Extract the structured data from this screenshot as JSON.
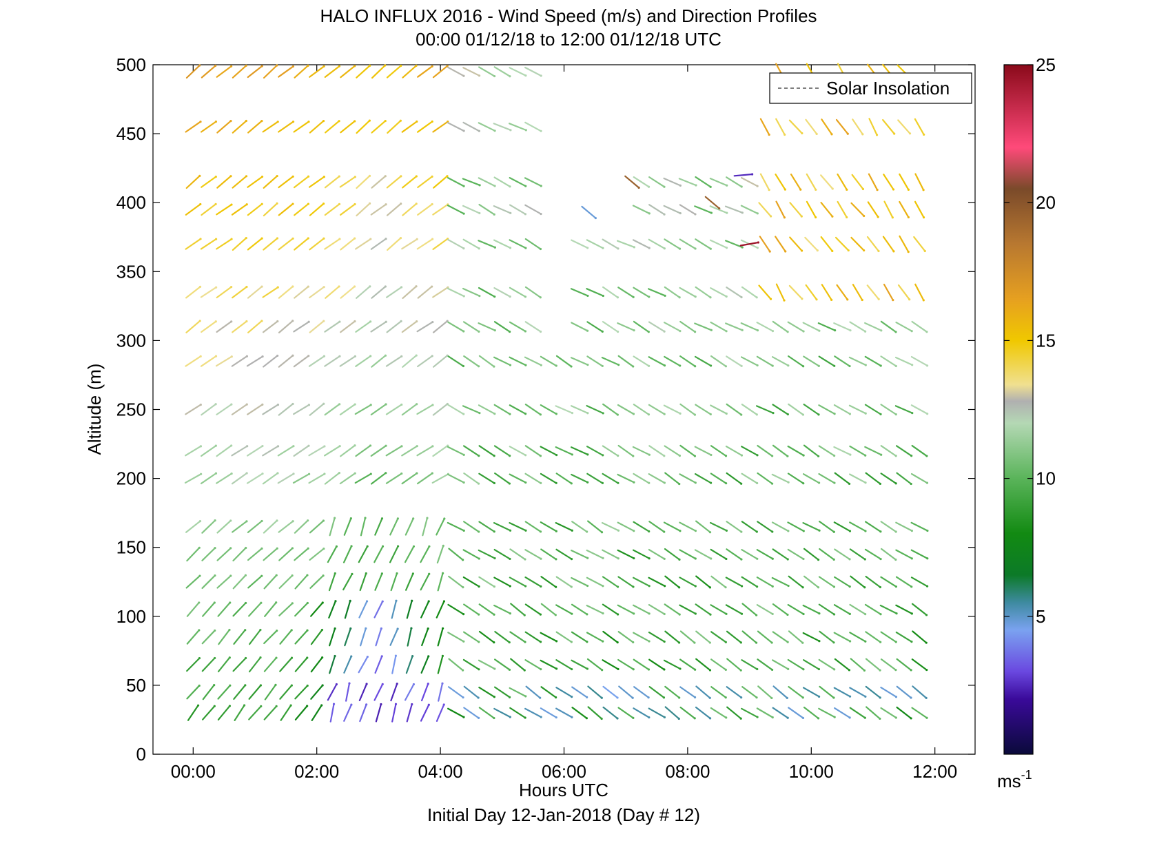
{
  "chart_data": {
    "type": "wind-barb-profile",
    "title": "HALO INFLUX 2016 - Wind Speed (m/s) and Direction Profiles",
    "subtitle": "00:00 01/12/18 to 12:00 01/12/18  UTC",
    "xlabel": "Hours UTC",
    "ylabel": "Altitude (m)",
    "footer": "Initial Day 12-Jan-2018 (Day # 12)",
    "x_ticks": [
      "00:00",
      "02:00",
      "04:00",
      "06:00",
      "08:00",
      "10:00",
      "12:00"
    ],
    "x_tick_values": [
      0,
      2,
      4,
      6,
      8,
      10,
      12
    ],
    "xlim": [
      -0.65,
      12.65
    ],
    "y_ticks": [
      0,
      50,
      100,
      150,
      200,
      250,
      300,
      350,
      400,
      450,
      500
    ],
    "ylim": [
      0,
      500
    ],
    "legend": {
      "entries": [
        "Solar Insolation"
      ],
      "placement": "top-right",
      "line_style": "dashed"
    },
    "colorbar": {
      "ticks": [
        5,
        10,
        15,
        20,
        25
      ],
      "range": [
        0,
        25
      ],
      "unit_label": "ms",
      "unit_exponent": "-1",
      "stops": [
        {
          "v": 0,
          "c": "#0a0a3a"
        },
        {
          "v": 2,
          "c": "#3a0a9a"
        },
        {
          "v": 3,
          "c": "#6a48e0"
        },
        {
          "v": 4.5,
          "c": "#7aa2f0"
        },
        {
          "v": 5.5,
          "c": "#3e8aa0"
        },
        {
          "v": 6.5,
          "c": "#0c7a28"
        },
        {
          "v": 8,
          "c": "#128a12"
        },
        {
          "v": 10,
          "c": "#5ab45a"
        },
        {
          "v": 12,
          "c": "#b4d8b4"
        },
        {
          "v": 12.8,
          "c": "#b0b0b0"
        },
        {
          "v": 13.4,
          "c": "#f0e090"
        },
        {
          "v": 15,
          "c": "#f0c800"
        },
        {
          "v": 16.5,
          "c": "#e6a020"
        },
        {
          "v": 18.5,
          "c": "#b87830"
        },
        {
          "v": 20.5,
          "c": "#7a4a2a"
        },
        {
          "v": 22,
          "c": "#ff4a7a"
        },
        {
          "v": 25,
          "c": "#8a0a1a"
        }
      ]
    },
    "altitudes": [
      30,
      45,
      65,
      85,
      105,
      125,
      145,
      165,
      200,
      220,
      250,
      285,
      310,
      335,
      370,
      395,
      415,
      455,
      495
    ],
    "times": [
      0.0,
      0.25,
      0.5,
      0.75,
      1.0,
      1.25,
      1.5,
      1.75,
      2.0,
      2.25,
      2.5,
      2.75,
      3.0,
      3.25,
      3.5,
      3.75,
      4.0,
      4.25,
      4.5,
      4.75,
      5.0,
      5.25,
      5.5,
      5.75,
      6.0,
      6.25,
      6.5,
      6.75,
      7.0,
      7.25,
      7.5,
      7.75,
      8.0,
      8.25,
      8.5,
      8.75,
      9.0,
      9.25,
      9.5,
      9.75,
      10.0,
      10.25,
      10.5,
      10.75,
      11.0,
      11.25,
      11.5,
      11.75
    ],
    "sample_notes": "Each profile column shows a wind vector per altitude colored by speed (m/s); direction given in degrees of screen angle.",
    "profiles_summary": [
      {
        "time_range": "00:00-04:00",
        "low_level_speed_ms": [
          2,
          9
        ],
        "upper_level_speed_ms": [
          13,
          18
        ],
        "direction": "from SW, pointing NE"
      },
      {
        "time_range": "04:00-12:00",
        "low_level_speed_ms": [
          5,
          11
        ],
        "upper_level_speed_ms": [
          9,
          16
        ],
        "direction": "from NW, pointing SE"
      }
    ],
    "isolated_vectors": [
      {
        "time": 7.1,
        "alt": 415,
        "speed": 19.5
      },
      {
        "time": 8.4,
        "alt": 400,
        "speed": 19.5
      },
      {
        "time": 8.9,
        "alt": 420,
        "speed": 2.5
      },
      {
        "time": 9.0,
        "alt": 370,
        "speed": 24.5
      },
      {
        "time": 6.4,
        "alt": 393,
        "speed": 4.8
      }
    ]
  }
}
